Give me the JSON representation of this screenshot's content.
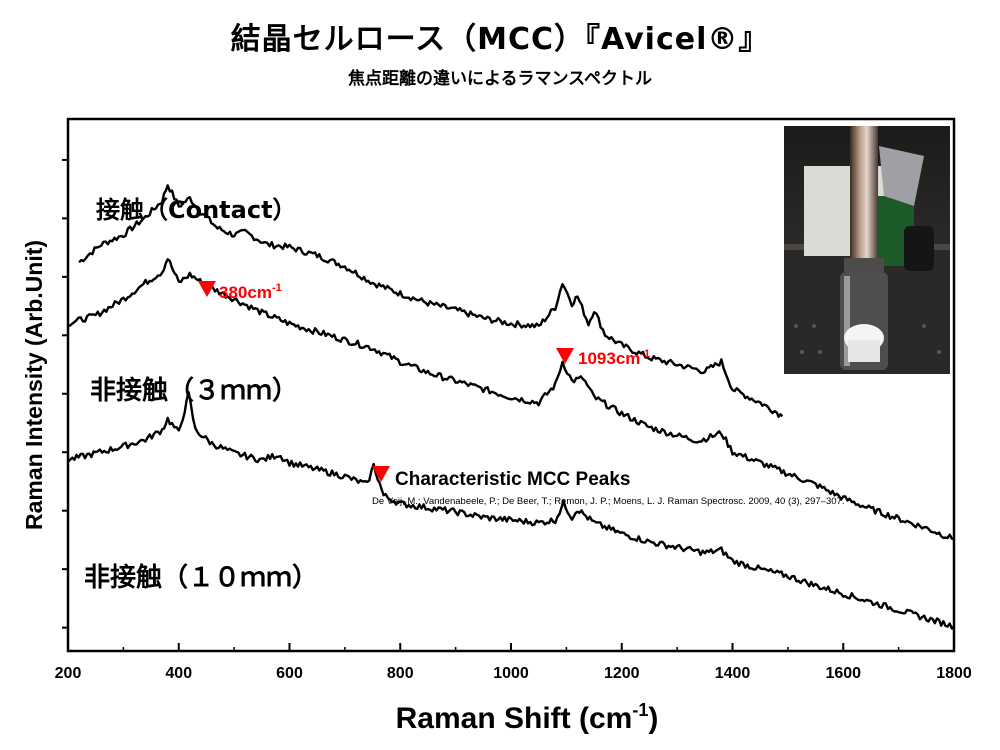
{
  "title": "結晶セルロース（MCC）『Avicel®』",
  "subtitle": "焦点距離の違いによるラマンスペクトル",
  "chart_data": {
    "type": "line",
    "xlabel": "Raman Shift (cm",
    "xlabel_sup": "-1",
    "xlabel_end": ")",
    "ylabel": "Raman Intensity (Arb.Unit)",
    "xlim": [
      200,
      1800
    ],
    "x_ticks": [
      200,
      400,
      600,
      800,
      1000,
      1200,
      1400,
      1600,
      1800
    ],
    "x_tick_labels": [
      "200",
      "400",
      "600",
      "800",
      "1000",
      "1200",
      "1400",
      "1600",
      "1800"
    ],
    "y_tick_count": 9,
    "grid": false,
    "series": [
      {
        "name": "接触（Contact）",
        "points": [
          [
            220,
            2.85
          ],
          [
            260,
            2.98
          ],
          [
            300,
            3.05
          ],
          [
            340,
            3.18
          ],
          [
            370,
            3.3
          ],
          [
            380,
            3.42
          ],
          [
            400,
            3.26
          ],
          [
            420,
            3.32
          ],
          [
            440,
            3.22
          ],
          [
            470,
            3.1
          ],
          [
            500,
            3.05
          ],
          [
            520,
            3.07
          ],
          [
            560,
            2.98
          ],
          [
            600,
            2.96
          ],
          [
            650,
            2.9
          ],
          [
            700,
            2.82
          ],
          [
            750,
            2.7
          ],
          [
            800,
            2.62
          ],
          [
            850,
            2.55
          ],
          [
            900,
            2.5
          ],
          [
            950,
            2.44
          ],
          [
            1000,
            2.4
          ],
          [
            1050,
            2.38
          ],
          [
            1080,
            2.52
          ],
          [
            1093,
            2.7
          ],
          [
            1110,
            2.55
          ],
          [
            1120,
            2.6
          ],
          [
            1140,
            2.4
          ],
          [
            1150,
            2.5
          ],
          [
            1170,
            2.32
          ],
          [
            1200,
            2.24
          ],
          [
            1250,
            2.15
          ],
          [
            1300,
            2.1
          ],
          [
            1350,
            2.05
          ],
          [
            1380,
            2.12
          ],
          [
            1400,
            1.92
          ],
          [
            1450,
            1.82
          ],
          [
            1480,
            1.75
          ],
          [
            1490,
            1.72
          ]
        ]
      },
      {
        "name": "非接触（３ｍｍ）",
        "points": [
          [
            200,
            2.4
          ],
          [
            250,
            2.46
          ],
          [
            300,
            2.58
          ],
          [
            340,
            2.7
          ],
          [
            370,
            2.78
          ],
          [
            380,
            2.88
          ],
          [
            400,
            2.7
          ],
          [
            420,
            2.76
          ],
          [
            450,
            2.68
          ],
          [
            500,
            2.58
          ],
          [
            550,
            2.48
          ],
          [
            600,
            2.4
          ],
          [
            650,
            2.34
          ],
          [
            700,
            2.28
          ],
          [
            750,
            2.22
          ],
          [
            800,
            2.12
          ],
          [
            850,
            2.04
          ],
          [
            900,
            1.98
          ],
          [
            950,
            1.92
          ],
          [
            1000,
            1.86
          ],
          [
            1050,
            1.82
          ],
          [
            1080,
            1.95
          ],
          [
            1093,
            2.12
          ],
          [
            1110,
            1.98
          ],
          [
            1130,
            2.0
          ],
          [
            1150,
            1.86
          ],
          [
            1200,
            1.74
          ],
          [
            1250,
            1.64
          ],
          [
            1300,
            1.58
          ],
          [
            1340,
            1.54
          ],
          [
            1380,
            1.6
          ],
          [
            1400,
            1.46
          ],
          [
            1450,
            1.38
          ],
          [
            1500,
            1.3
          ],
          [
            1550,
            1.22
          ],
          [
            1600,
            1.12
          ],
          [
            1650,
            1.04
          ],
          [
            1700,
            0.97
          ],
          [
            1750,
            0.9
          ],
          [
            1800,
            0.82
          ]
        ]
      },
      {
        "name": "非接触（１０ｍｍ）",
        "points": [
          [
            200,
            1.4
          ],
          [
            250,
            1.45
          ],
          [
            300,
            1.5
          ],
          [
            340,
            1.55
          ],
          [
            370,
            1.62
          ],
          [
            380,
            1.7
          ],
          [
            400,
            1.6
          ],
          [
            418,
            1.88
          ],
          [
            430,
            1.62
          ],
          [
            460,
            1.52
          ],
          [
            500,
            1.45
          ],
          [
            550,
            1.4
          ],
          [
            580,
            1.44
          ],
          [
            600,
            1.38
          ],
          [
            650,
            1.33
          ],
          [
            700,
            1.28
          ],
          [
            740,
            1.22
          ],
          [
            752,
            1.36
          ],
          [
            770,
            1.14
          ],
          [
            800,
            1.08
          ],
          [
            850,
            1.05
          ],
          [
            900,
            1.02
          ],
          [
            950,
            0.98
          ],
          [
            1000,
            0.96
          ],
          [
            1050,
            0.94
          ],
          [
            1080,
            0.96
          ],
          [
            1095,
            1.08
          ],
          [
            1110,
            0.98
          ],
          [
            1120,
            1.04
          ],
          [
            1150,
            0.94
          ],
          [
            1200,
            0.86
          ],
          [
            1250,
            0.8
          ],
          [
            1300,
            0.76
          ],
          [
            1350,
            0.72
          ],
          [
            1380,
            0.74
          ],
          [
            1400,
            0.66
          ],
          [
            1450,
            0.6
          ],
          [
            1500,
            0.55
          ],
          [
            1550,
            0.48
          ],
          [
            1600,
            0.42
          ],
          [
            1650,
            0.36
          ],
          [
            1700,
            0.3
          ],
          [
            1750,
            0.24
          ],
          [
            1800,
            0.18
          ]
        ]
      }
    ],
    "ylim": [
      0,
      3.9
    ],
    "annotations": [
      {
        "text": "380cm",
        "sup": "-1",
        "color": "#ff0000"
      },
      {
        "text": "1093cm",
        "sup": "-1",
        "color": "#ff0000"
      },
      {
        "text": "Characteristic MCC Peaks",
        "color": "#000000",
        "marker_color": "#ff0000"
      },
      {
        "text": "De Veij, M.; Vandenabeele, P.; De Beer, T.; Remon, J. P.; Moens, L. J. Raman Spectrosc. 2009, 40 (3), 297–307."
      }
    ]
  },
  "photo_alt": "sample vial photo",
  "colors": {
    "line": "#000000",
    "accent": "#ff0000"
  }
}
